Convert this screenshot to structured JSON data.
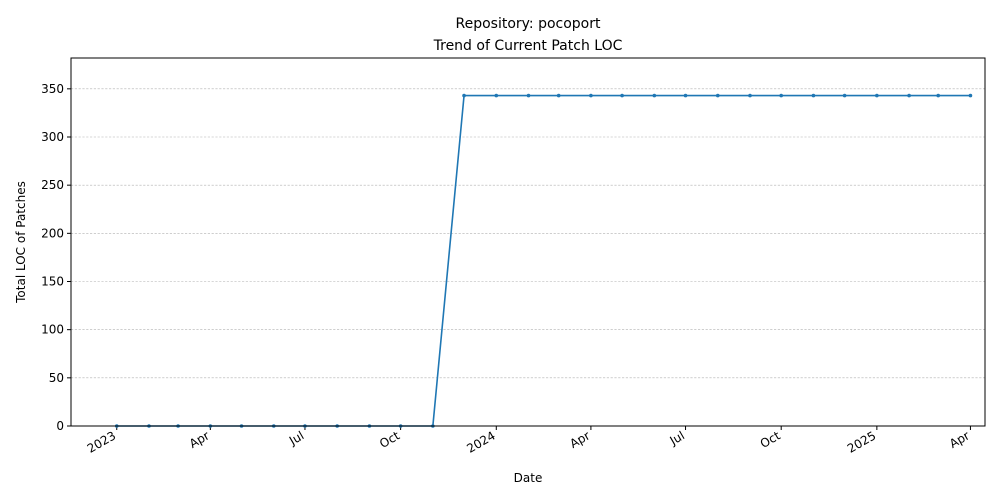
{
  "chart_data": {
    "type": "line",
    "title": "Repository: pocoport",
    "subtitle": "Trend of Current Patch LOC",
    "xlabel": "Date",
    "ylabel": "Total LOC of Patches",
    "ylim": [
      0,
      382
    ],
    "xlim": [
      "2022-11-18",
      "2025-04-15"
    ],
    "grid": "y-dashed",
    "legend": "none",
    "line_color": "#1f77b4",
    "yticks": [
      0,
      50,
      100,
      150,
      200,
      250,
      300,
      350
    ],
    "xticks": [
      {
        "date": "2023-01-01",
        "label": "2023"
      },
      {
        "date": "2023-04-01",
        "label": "Apr"
      },
      {
        "date": "2023-07-01",
        "label": "Jul"
      },
      {
        "date": "2023-10-01",
        "label": "Oct"
      },
      {
        "date": "2024-01-01",
        "label": "2024"
      },
      {
        "date": "2024-04-01",
        "label": "Apr"
      },
      {
        "date": "2024-07-01",
        "label": "Jul"
      },
      {
        "date": "2024-10-01",
        "label": "Oct"
      },
      {
        "date": "2025-01-01",
        "label": "2025"
      },
      {
        "date": "2025-04-01",
        "label": "Apr"
      }
    ],
    "series": [
      {
        "x": [
          "2023-01-01",
          "2023-02-01",
          "2023-03-01",
          "2023-04-01",
          "2023-05-01",
          "2023-06-01",
          "2023-07-01",
          "2023-08-01",
          "2023-09-01",
          "2023-10-01",
          "2023-11-01",
          "2023-12-01",
          "2024-01-01",
          "2024-02-01",
          "2024-03-01",
          "2024-04-01",
          "2024-05-01",
          "2024-06-01",
          "2024-07-01",
          "2024-08-01",
          "2024-09-01",
          "2024-10-01",
          "2024-11-01",
          "2024-12-01",
          "2025-01-01",
          "2025-02-01",
          "2025-03-01",
          "2025-04-01"
        ],
        "values": [
          0,
          0,
          0,
          0,
          0,
          0,
          0,
          0,
          0,
          0,
          0,
          343,
          343,
          343,
          343,
          343,
          343,
          343,
          343,
          343,
          343,
          343,
          343,
          343,
          343,
          343,
          343,
          343
        ]
      }
    ]
  }
}
